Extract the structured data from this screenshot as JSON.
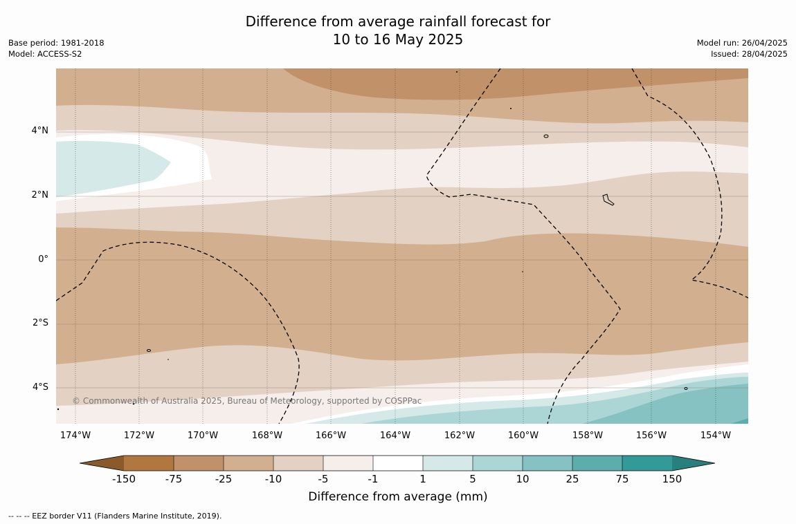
{
  "title": {
    "line1": "Difference from average rainfall forecast for",
    "line2": "10 to 16 May 2025"
  },
  "meta": {
    "base_period": "Base period: 1981-2018",
    "model": "Model: ACCESS-S2",
    "model_run": "Model run: 26/04/2025",
    "issued": "Issued: 28/04/2025"
  },
  "copyright": "© Commonwealth of Australia 2025, Bureau of Meteorology, supported by COSPPac",
  "latitude_labels": [
    "4°N",
    "2°N",
    "0°",
    "2°S",
    "4°S"
  ],
  "longitude_labels": [
    "174°W",
    "172°W",
    "170°W",
    "168°W",
    "166°W",
    "164°W",
    "162°W",
    "160°W",
    "158°W",
    "156°W",
    "154°W"
  ],
  "colorbar": {
    "label": "Difference from average (mm)",
    "ticks": [
      "-150",
      "-75",
      "-25",
      "-10",
      "-5",
      "-1",
      "1",
      "5",
      "10",
      "25",
      "75",
      "150"
    ],
    "colors": [
      "#8b5a2b",
      "#b07840",
      "#c19269",
      "#d2b08f",
      "#e3d2c3",
      "#f5eeea",
      "#ffffff",
      "#d5e9e8",
      "#acd6d5",
      "#85c2c1",
      "#5caeab",
      "#349a97",
      "#27807e"
    ]
  },
  "footnote": "--  --  -- EEZ border V11 (Flanders Marine Institute, 2019)."
}
